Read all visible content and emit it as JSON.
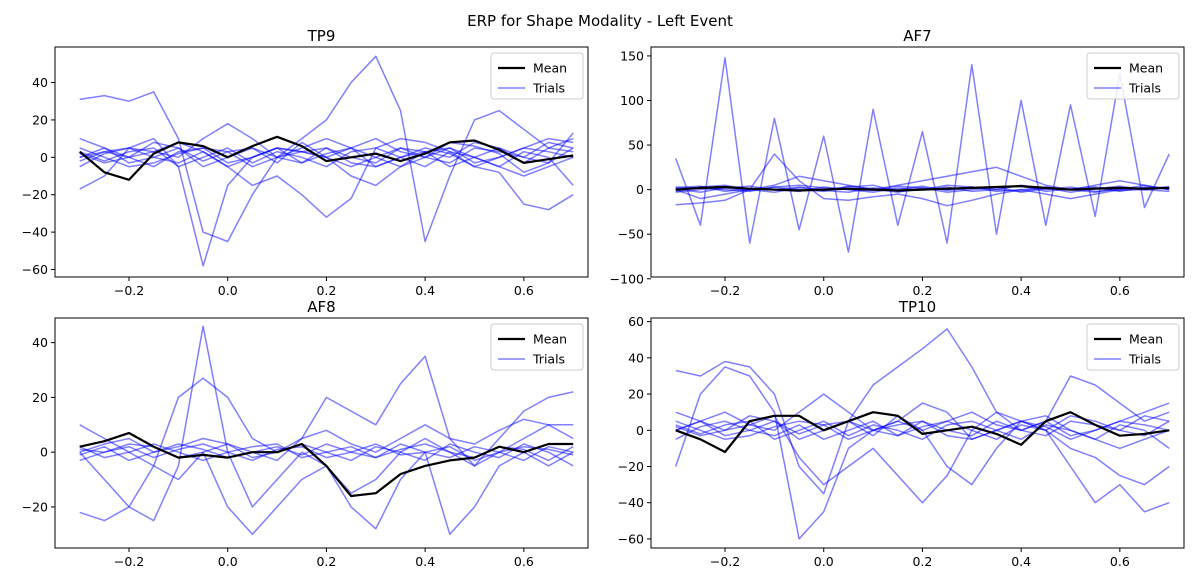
{
  "figure_title": "ERP for Shape Modality - Left Event",
  "colors": {
    "mean": "#000000",
    "trial": "#0000ff",
    "axes": "#000000",
    "background": "#ffffff"
  },
  "chart_data": [
    {
      "type": "line",
      "title": "TP9",
      "xlim": [
        -0.35,
        0.73
      ],
      "ylim": [
        -64,
        59
      ],
      "xticks": [
        -0.2,
        0.0,
        0.2,
        0.4,
        0.6
      ],
      "xtick_labels": [
        "−0.2",
        "0.0",
        "0.2",
        "0.4",
        "0.6"
      ],
      "yticks": [
        -60,
        -40,
        -20,
        0,
        20,
        40
      ],
      "ytick_labels": [
        "−60",
        "−40",
        "−20",
        "0",
        "20",
        "40"
      ],
      "legend": {
        "position": "top-right",
        "entries": [
          "Mean",
          "Trials"
        ]
      },
      "x": [
        -0.3,
        -0.25,
        -0.2,
        -0.15,
        -0.1,
        -0.05,
        0.0,
        0.05,
        0.1,
        0.15,
        0.2,
        0.25,
        0.3,
        0.35,
        0.4,
        0.45,
        0.5,
        0.55,
        0.6,
        0.65,
        0.7
      ],
      "series": [
        {
          "name": "Mean",
          "values": [
            3,
            -8,
            -12,
            2,
            8,
            6,
            0,
            6,
            11,
            6,
            -2,
            0,
            2,
            -2,
            2,
            8,
            9,
            4,
            -3,
            -1,
            1
          ]
        },
        {
          "name": "Trials",
          "values": [
            31,
            33,
            30,
            35,
            10,
            -40,
            -45,
            -20,
            0,
            10,
            20,
            40,
            54,
            25,
            -45,
            -10,
            20,
            25,
            15,
            5,
            10
          ]
        },
        {
          "values": [
            -17,
            -10,
            5,
            10,
            -5,
            -58,
            -15,
            0,
            5,
            3,
            0,
            -10,
            -15,
            -5,
            0,
            8,
            6,
            2,
            -8,
            -3,
            13
          ]
        },
        {
          "values": [
            10,
            5,
            0,
            3,
            8,
            3,
            -5,
            -15,
            -10,
            -20,
            -32,
            -22,
            5,
            10,
            8,
            3,
            -5,
            -8,
            -25,
            -28,
            -20
          ]
        },
        {
          "values": [
            0,
            3,
            5,
            3,
            0,
            10,
            18,
            10,
            0,
            5,
            10,
            5,
            -5,
            0,
            3,
            5,
            0,
            -5,
            -10,
            -5,
            0
          ]
        },
        {
          "values": [
            2,
            -3,
            0,
            8,
            5,
            -5,
            0,
            5,
            -3,
            8,
            0,
            5,
            10,
            3,
            0,
            -3,
            5,
            3,
            0,
            8,
            5
          ]
        },
        {
          "values": [
            5,
            0,
            -5,
            -3,
            2,
            5,
            3,
            -5,
            0,
            3,
            5,
            -3,
            -5,
            0,
            5,
            2,
            -5,
            0,
            5,
            3,
            0
          ]
        },
        {
          "values": [
            -5,
            2,
            5,
            0,
            -3,
            3,
            -5,
            0,
            5,
            -3,
            2,
            5,
            0,
            -5,
            3,
            0,
            8,
            5,
            0,
            -3,
            5
          ]
        },
        {
          "values": [
            0,
            5,
            -3,
            0,
            5,
            -2,
            3,
            5,
            0,
            -3,
            5,
            0,
            -3,
            5,
            0,
            5,
            -3,
            0,
            5,
            10,
            8
          ]
        },
        {
          "values": [
            3,
            -2,
            3,
            5,
            -5,
            0,
            5,
            -3,
            3,
            0,
            -5,
            3,
            5,
            0,
            -5,
            3,
            0,
            -5,
            3,
            0,
            -15
          ]
        },
        {
          "values": [
            -2,
            3,
            0,
            -5,
            3,
            5,
            -3,
            0,
            5,
            3,
            0,
            -5,
            0,
            5,
            3,
            -5,
            0,
            5,
            -3,
            5,
            3
          ]
        }
      ]
    },
    {
      "type": "line",
      "title": "AF7",
      "xlim": [
        -0.35,
        0.73
      ],
      "ylim": [
        -98,
        160
      ],
      "xticks": [
        -0.2,
        0.0,
        0.2,
        0.4,
        0.6
      ],
      "xtick_labels": [
        "−0.2",
        "0.0",
        "0.2",
        "0.4",
        "0.6"
      ],
      "yticks": [
        -100,
        -50,
        0,
        50,
        100,
        150
      ],
      "ytick_labels": [
        "−100",
        "−50",
        "0",
        "50",
        "100",
        "150"
      ],
      "legend": {
        "position": "top-right",
        "entries": [
          "Mean",
          "Trials"
        ]
      },
      "x": [
        -0.3,
        -0.25,
        -0.2,
        -0.15,
        -0.1,
        -0.05,
        0.0,
        0.05,
        0.1,
        0.15,
        0.2,
        0.25,
        0.3,
        0.35,
        0.4,
        0.45,
        0.5,
        0.55,
        0.6,
        0.65,
        0.7
      ],
      "series": [
        {
          "name": "Mean",
          "values": [
            0,
            2,
            3,
            1,
            0,
            -1,
            0,
            1,
            0,
            -1,
            0,
            1,
            2,
            3,
            4,
            2,
            0,
            1,
            2,
            1,
            2
          ]
        },
        {
          "name": "Trials",
          "values": [
            35,
            -40,
            148,
            -60,
            80,
            -45,
            60,
            -70,
            90,
            -40,
            65,
            -60,
            140,
            -50,
            100,
            -40,
            95,
            -30,
            130,
            -20,
            40
          ]
        },
        {
          "values": [
            -17,
            -15,
            -12,
            0,
            40,
            10,
            -10,
            -12,
            -8,
            -5,
            -10,
            -18,
            -12,
            -5,
            0,
            -5,
            -10,
            -5,
            0,
            2,
            3
          ]
        },
        {
          "values": [
            0,
            -10,
            -5,
            0,
            5,
            15,
            10,
            5,
            0,
            5,
            10,
            15,
            20,
            25,
            15,
            5,
            0,
            5,
            10,
            5,
            0
          ]
        },
        {
          "values": [
            3,
            2,
            0,
            -2,
            3,
            5,
            2,
            0,
            -3,
            2,
            0,
            5,
            3,
            0,
            -2,
            3,
            0,
            -3,
            2,
            0,
            3
          ]
        },
        {
          "values": [
            -2,
            3,
            5,
            0,
            -3,
            2,
            0,
            3,
            5,
            -2,
            0,
            3,
            -2,
            0,
            5,
            0,
            3,
            -2,
            0,
            5,
            0
          ]
        },
        {
          "values": [
            1,
            -3,
            2,
            4,
            0,
            -2,
            3,
            0,
            -1,
            4,
            2,
            -3,
            0,
            2,
            4,
            -2,
            1,
            3,
            -1,
            0,
            2
          ]
        },
        {
          "values": [
            -3,
            0,
            2,
            -1,
            3,
            0,
            -2,
            4,
            1,
            -3,
            2,
            0,
            3,
            -2,
            0,
            2,
            -3,
            1,
            4,
            0,
            -2
          ]
        },
        {
          "values": [
            2,
            4,
            -2,
            1,
            0,
            3,
            -1,
            -3,
            2,
            0,
            4,
            -1,
            2,
            3,
            -3,
            1,
            0,
            2,
            -2,
            3,
            1
          ]
        }
      ]
    },
    {
      "type": "line",
      "title": "AF8",
      "xlim": [
        -0.35,
        0.73
      ],
      "ylim": [
        -35,
        49
      ],
      "xticks": [
        -0.2,
        0.0,
        0.2,
        0.4,
        0.6
      ],
      "xtick_labels": [
        "−0.2",
        "0.0",
        "0.2",
        "0.4",
        "0.6"
      ],
      "yticks": [
        -20,
        0,
        20,
        40
      ],
      "ytick_labels": [
        "−20",
        "0",
        "20",
        "40"
      ],
      "legend": {
        "position": "top-right",
        "entries": [
          "Mean",
          "Trials"
        ]
      },
      "x": [
        -0.3,
        -0.25,
        -0.2,
        -0.15,
        -0.1,
        -0.05,
        0.0,
        0.05,
        0.1,
        0.15,
        0.2,
        0.25,
        0.3,
        0.35,
        0.4,
        0.45,
        0.5,
        0.55,
        0.6,
        0.65,
        0.7
      ],
      "series": [
        {
          "name": "Mean",
          "values": [
            2,
            4,
            7,
            2,
            -2,
            -1,
            -2,
            0,
            0,
            3,
            -5,
            -16,
            -15,
            -8,
            -5,
            -3,
            -2,
            2,
            0,
            3,
            3
          ]
        },
        {
          "name": "Trials",
          "values": [
            -22,
            -25,
            -20,
            -5,
            20,
            27,
            20,
            5,
            0,
            5,
            20,
            15,
            10,
            25,
            35,
            5,
            -5,
            5,
            15,
            20,
            22
          ]
        },
        {
          "values": [
            0,
            -10,
            -20,
            -25,
            -5,
            46,
            0,
            -20,
            -10,
            0,
            -5,
            -15,
            -10,
            0,
            5,
            0,
            -5,
            0,
            5,
            10,
            5
          ]
        },
        {
          "values": [
            10,
            5,
            0,
            -5,
            -10,
            0,
            -20,
            -30,
            -20,
            -10,
            -5,
            -20,
            -28,
            -10,
            0,
            -30,
            -20,
            -5,
            0,
            -5,
            0
          ]
        },
        {
          "values": [
            0,
            3,
            5,
            0,
            2,
            5,
            3,
            0,
            -3,
            5,
            8,
            3,
            0,
            5,
            10,
            5,
            3,
            8,
            12,
            10,
            10
          ]
        },
        {
          "values": [
            -3,
            0,
            3,
            2,
            -2,
            0,
            3,
            -2,
            0,
            3,
            0,
            -3,
            2,
            0,
            -3,
            3,
            0,
            -2,
            3,
            0,
            -5
          ]
        },
        {
          "values": [
            2,
            -2,
            0,
            3,
            0,
            -3,
            0,
            2,
            3,
            -2,
            0,
            2,
            -2,
            3,
            0,
            -2,
            2,
            0,
            -3,
            2,
            0
          ]
        },
        {
          "values": [
            -1,
            2,
            -3,
            0,
            3,
            1,
            -2,
            0,
            2,
            -1,
            3,
            0,
            -2,
            1,
            3,
            0,
            -2,
            2,
            1,
            -3,
            2
          ]
        },
        {
          "values": [
            1,
            0,
            2,
            -2,
            1,
            3,
            0,
            -3,
            1,
            2,
            -2,
            0,
            3,
            -1,
            0,
            2,
            -3,
            0,
            2,
            1,
            -1
          ]
        }
      ]
    },
    {
      "type": "line",
      "title": "TP10",
      "xlim": [
        -0.35,
        0.73
      ],
      "ylim": [
        -65,
        62
      ],
      "xticks": [
        -0.2,
        0.0,
        0.2,
        0.4,
        0.6
      ],
      "xtick_labels": [
        "−0.2",
        "0.0",
        "0.2",
        "0.4",
        "0.6"
      ],
      "yticks": [
        -60,
        -40,
        -20,
        0,
        20,
        40,
        60
      ],
      "ytick_labels": [
        "−60",
        "−40",
        "−20",
        "0",
        "20",
        "40",
        "60"
      ],
      "legend": {
        "position": "top-right",
        "entries": [
          "Mean",
          "Trials"
        ]
      },
      "x": [
        -0.3,
        -0.25,
        -0.2,
        -0.15,
        -0.1,
        -0.05,
        0.0,
        0.05,
        0.1,
        0.15,
        0.2,
        0.25,
        0.3,
        0.35,
        0.4,
        0.45,
        0.5,
        0.55,
        0.6,
        0.65,
        0.7
      ],
      "series": [
        {
          "name": "Mean",
          "values": [
            0,
            -5,
            -12,
            5,
            8,
            8,
            0,
            5,
            10,
            8,
            -2,
            0,
            2,
            -2,
            -8,
            5,
            10,
            3,
            -3,
            -2,
            0
          ]
        },
        {
          "name": "Trials",
          "values": [
            33,
            30,
            38,
            35,
            20,
            -20,
            -35,
            5,
            25,
            35,
            45,
            56,
            35,
            10,
            0,
            5,
            30,
            25,
            15,
            5,
            10
          ]
        },
        {
          "values": [
            -20,
            20,
            35,
            30,
            10,
            -60,
            -45,
            -10,
            0,
            5,
            0,
            -20,
            -30,
            -10,
            5,
            0,
            -20,
            -40,
            -30,
            -45,
            -40
          ]
        },
        {
          "values": [
            10,
            5,
            0,
            3,
            8,
            -15,
            -30,
            -20,
            -10,
            -25,
            -40,
            -25,
            0,
            10,
            5,
            0,
            -10,
            -15,
            -25,
            -30,
            -20
          ]
        },
        {
          "values": [
            0,
            5,
            10,
            3,
            0,
            10,
            20,
            10,
            0,
            5,
            15,
            10,
            -5,
            0,
            5,
            8,
            0,
            -5,
            -10,
            -5,
            0
          ]
        },
        {
          "values": [
            2,
            -3,
            0,
            8,
            5,
            -5,
            0,
            5,
            -3,
            8,
            0,
            5,
            10,
            3,
            0,
            -3,
            5,
            3,
            0,
            8,
            5
          ]
        },
        {
          "values": [
            5,
            0,
            -5,
            -3,
            2,
            5,
            3,
            -5,
            0,
            3,
            5,
            -3,
            -5,
            0,
            5,
            2,
            -5,
            0,
            5,
            3,
            0
          ]
        },
        {
          "values": [
            -5,
            2,
            5,
            0,
            -3,
            3,
            -5,
            0,
            5,
            -3,
            2,
            5,
            0,
            -5,
            3,
            0,
            8,
            5,
            0,
            -3,
            5
          ]
        },
        {
          "values": [
            0,
            5,
            -3,
            0,
            5,
            -2,
            3,
            5,
            0,
            -3,
            5,
            0,
            -3,
            5,
            0,
            5,
            -3,
            0,
            5,
            10,
            15
          ]
        },
        {
          "values": [
            3,
            -2,
            3,
            5,
            -5,
            0,
            5,
            -3,
            3,
            0,
            -5,
            3,
            5,
            0,
            -5,
            3,
            0,
            -5,
            3,
            0,
            -10
          ]
        }
      ]
    }
  ]
}
